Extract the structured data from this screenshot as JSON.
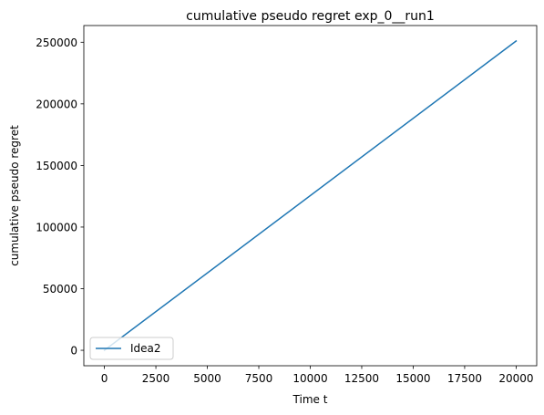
{
  "chart_data": {
    "type": "line",
    "title": "cumulative pseudo regret exp_0__run1",
    "xlabel": "Time t",
    "ylabel": "cumulative pseudo regret",
    "xlim": [
      -1000,
      21000
    ],
    "ylim": [
      -12550,
      263550
    ],
    "x_ticks": [
      0,
      2500,
      5000,
      7500,
      10000,
      12500,
      15000,
      17500,
      20000
    ],
    "y_ticks": [
      0,
      50000,
      100000,
      150000,
      200000,
      250000
    ],
    "grid": false,
    "legend_position": "lower-left",
    "series": [
      {
        "name": "Idea2",
        "color": "#1f77b4",
        "x": [
          0,
          20000
        ],
        "y": [
          0,
          251000
        ]
      }
    ]
  }
}
